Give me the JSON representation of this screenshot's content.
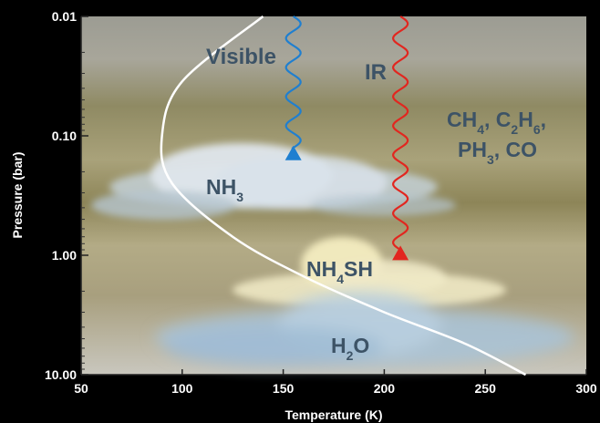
{
  "chart_data": {
    "type": "line",
    "xlabel": "Temperature (K)",
    "ylabel": "Pressure (bar)",
    "xlim": [
      50,
      300
    ],
    "ylim": [
      0.01,
      10.0
    ],
    "yscale": "log",
    "x_ticks": [
      {
        "value": 50,
        "label": "50"
      },
      {
        "value": 100,
        "label": "100"
      },
      {
        "value": 150,
        "label": "150"
      },
      {
        "value": 200,
        "label": "200"
      },
      {
        "value": 250,
        "label": "250"
      },
      {
        "value": 300,
        "label": "300"
      }
    ],
    "y_ticks": [
      {
        "value": 0.01,
        "label": "0.01"
      },
      {
        "value": 0.1,
        "label": "0.10"
      },
      {
        "value": 1.0,
        "label": "1.00"
      },
      {
        "value": 10.0,
        "label": "10.00"
      }
    ],
    "grid": false,
    "series": [
      {
        "color": "#ffffff",
        "points": [
          [
            140,
            0.01
          ],
          [
            100,
            0.035
          ],
          [
            90,
            0.1
          ],
          [
            95,
            0.25
          ],
          [
            125,
            0.7
          ],
          [
            160,
            1.5
          ],
          [
            200,
            3.0
          ],
          [
            240,
            5.5
          ],
          [
            270,
            10.0
          ]
        ]
      }
    ],
    "arrows": [
      {
        "label": "Visible",
        "color": "#1f7fd0",
        "x": 155,
        "from": 0.01,
        "to": 0.16
      },
      {
        "label": "IR",
        "color": "#e2261f",
        "x": 208,
        "from": 0.01,
        "to": 1.1
      }
    ],
    "annotations": [
      {
        "base": "CH",
        "sub": "4",
        "x": 272,
        "y": 0.075
      },
      {
        "base": "NH",
        "sub": "3",
        "x": 118,
        "y": 0.35
      },
      {
        "base": "H",
        "sub": "2",
        "tail": "O",
        "x": 195,
        "y": 5.0
      }
    ],
    "label_gases_line1": [
      {
        "base": "CH",
        "sub": "4"
      },
      {
        "base": ", C",
        "sub": "2"
      },
      {
        "base": "H",
        "sub": "6"
      },
      {
        "base": ",",
        "sub": ""
      }
    ],
    "label_gases_line2": [
      {
        "base": "PH",
        "sub": "3"
      },
      {
        "base": ", CO",
        "sub": ""
      }
    ],
    "label_nh4sh": [
      {
        "base": "NH",
        "sub": "4"
      },
      {
        "base": "SH",
        "sub": ""
      }
    ]
  }
}
